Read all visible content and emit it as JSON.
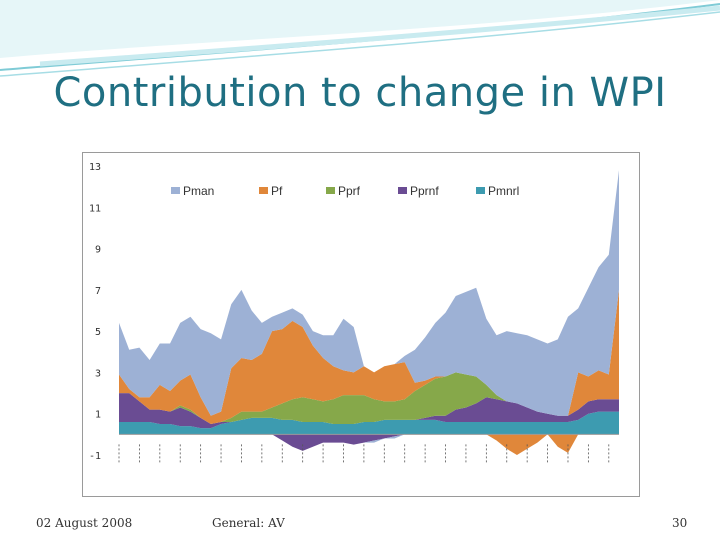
{
  "slide": {
    "title": "Contribution to change in WPI",
    "footer_date": "02 August 2008",
    "footer_center": "General: AV",
    "page_number": "30"
  },
  "chart_data": {
    "type": "area",
    "title": "",
    "xlabel": "",
    "ylabel": "",
    "ylim": [
      -1,
      13
    ],
    "yticks": [
      -1,
      1,
      3,
      5,
      7,
      9,
      11,
      13
    ],
    "grid": false,
    "legend_position": "top",
    "stacked": true,
    "x_points": 50,
    "series": [
      {
        "name": "Pmnrl",
        "color": "#3d9bb0",
        "values": [
          0.6,
          0.6,
          0.6,
          0.6,
          0.5,
          0.5,
          0.4,
          0.4,
          0.3,
          0.3,
          0.5,
          0.6,
          0.7,
          0.8,
          0.8,
          0.8,
          0.7,
          0.7,
          0.6,
          0.6,
          0.6,
          0.5,
          0.5,
          0.5,
          0.6,
          0.6,
          0.7,
          0.7,
          0.7,
          0.7,
          0.7,
          0.7,
          0.6,
          0.6,
          0.6,
          0.6,
          0.6,
          0.6,
          0.6,
          0.6,
          0.6,
          0.6,
          0.6,
          0.6,
          0.6,
          0.7,
          1.0,
          1.1,
          1.1,
          1.1
        ]
      },
      {
        "name": "Pprnf",
        "color": "#6a4c93",
        "values": [
          1.4,
          1.4,
          1.0,
          0.6,
          0.7,
          0.6,
          0.9,
          0.7,
          0.5,
          0.2,
          0.1,
          0.0,
          0.0,
          0.0,
          0.0,
          0.0,
          -0.3,
          -0.6,
          -0.8,
          -0.6,
          -0.4,
          -0.4,
          -0.4,
          -0.5,
          -0.4,
          -0.3,
          -0.2,
          -0.1,
          0.0,
          0.0,
          0.1,
          0.2,
          0.3,
          0.6,
          0.7,
          0.9,
          1.2,
          1.1,
          1.0,
          0.9,
          0.7,
          0.5,
          0.4,
          0.3,
          0.3,
          0.5,
          0.6,
          0.6,
          0.6,
          0.6
        ]
      },
      {
        "name": "Pprf",
        "color": "#86a84a",
        "values": [
          0.0,
          0.0,
          0.0,
          0.0,
          0.0,
          0.0,
          0.1,
          0.1,
          0.0,
          0.0,
          0.0,
          0.2,
          0.4,
          0.3,
          0.3,
          0.5,
          0.8,
          1.0,
          1.2,
          1.1,
          1.0,
          1.2,
          1.4,
          1.4,
          1.3,
          1.1,
          0.9,
          0.9,
          1.0,
          1.4,
          1.6,
          1.8,
          1.9,
          1.8,
          1.6,
          1.3,
          0.6,
          0.2,
          0.0,
          0.0,
          0.0,
          0.0,
          0.0,
          0.0,
          0.0,
          0.0,
          0.0,
          0.0,
          0.0,
          0.0
        ]
      },
      {
        "name": "Pf",
        "color": "#e0873a",
        "values": [
          0.9,
          0.2,
          0.2,
          0.6,
          1.2,
          1.0,
          1.2,
          1.7,
          1.0,
          0.4,
          0.5,
          2.4,
          2.6,
          2.5,
          2.8,
          3.7,
          3.6,
          3.8,
          3.4,
          2.6,
          2.1,
          1.6,
          1.2,
          1.1,
          1.4,
          1.3,
          1.7,
          1.8,
          1.8,
          0.4,
          0.2,
          0.1,
          0.0,
          0.0,
          0.0,
          0.0,
          0.0,
          -0.3,
          -0.7,
          -1.0,
          -0.7,
          -0.4,
          0.0,
          -0.6,
          -0.9,
          1.8,
          1.2,
          1.4,
          1.2,
          5.3
        ]
      },
      {
        "name": "Pman",
        "color": "#9db1d5",
        "values": [
          2.5,
          1.9,
          2.4,
          1.8,
          2.0,
          2.3,
          2.8,
          2.8,
          3.3,
          4.0,
          3.5,
          3.1,
          3.3,
          2.4,
          1.5,
          0.7,
          0.8,
          0.6,
          0.6,
          0.7,
          1.1,
          1.5,
          2.5,
          2.2,
          0.0,
          -0.1,
          0.0,
          -0.1,
          0.3,
          1.6,
          2.1,
          2.6,
          3.1,
          3.7,
          4.0,
          4.3,
          3.2,
          2.9,
          3.4,
          3.4,
          3.5,
          3.5,
          3.4,
          3.7,
          4.8,
          3.1,
          4.3,
          5.0,
          5.8,
          5.8
        ]
      }
    ],
    "legend_order": [
      "Pman",
      "Pf",
      "Pprf",
      "Pprnf",
      "Pmnrl"
    ]
  }
}
